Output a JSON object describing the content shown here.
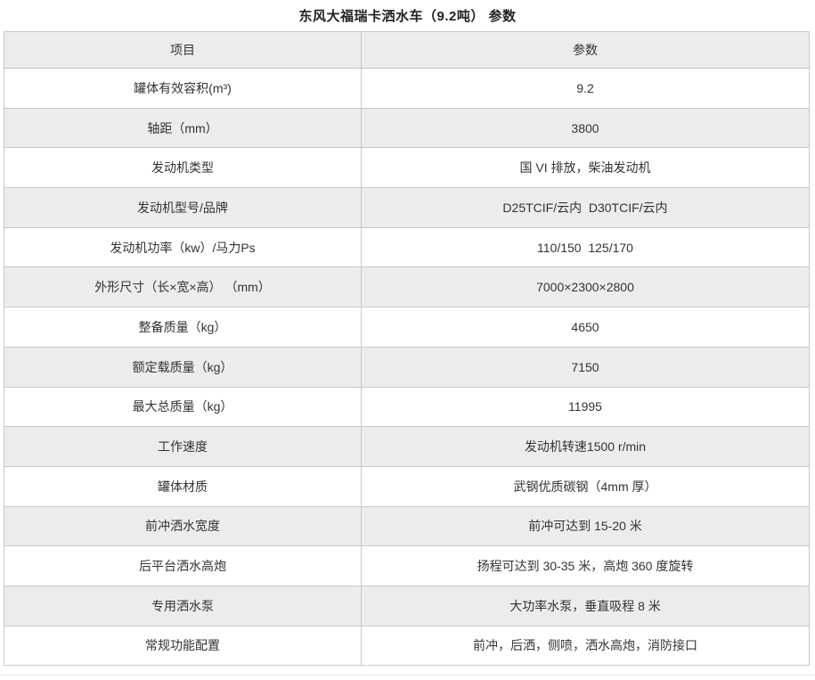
{
  "title": "东风大福瑞卡洒水车（9.2吨） 参数",
  "table": {
    "headers": [
      "项目",
      "参数"
    ],
    "rows": [
      {
        "item": "罐体有效容积(m³)",
        "value": "9.2"
      },
      {
        "item": "轴距（mm）",
        "value": "3800"
      },
      {
        "item": "发动机类型",
        "value": "国 VI 排放，柴油发动机"
      },
      {
        "item": "发动机型号/品牌",
        "value": "D25TCIF/云内  D30TCIF/云内"
      },
      {
        "item": "发动机功率（kw）/马力Ps",
        "value": "110/150  125/170"
      },
      {
        "item": "外形尺寸（长×宽×高） （mm）",
        "value": "7000×2300×2800"
      },
      {
        "item": "整备质量（kg）",
        "value": "4650"
      },
      {
        "item": "额定载质量（kg）",
        "value": "7150"
      },
      {
        "item": "最大总质量（kg）",
        "value": "11995"
      },
      {
        "item": "工作速度",
        "value": "发动机转速1500 r/min"
      },
      {
        "item": "罐体材质",
        "value": "武钢优质碳钢（4mm 厚）"
      },
      {
        "item": "前冲洒水宽度",
        "value": "前冲可达到 15-20 米"
      },
      {
        "item": "后平台洒水高炮",
        "value": "扬程可达到 30-35 米，高炮 360 度旋转"
      },
      {
        "item": "专用洒水泵",
        "value": "大功率水泵，垂直吸程 8 米"
      },
      {
        "item": "常规功能配置",
        "value": "前冲，后洒，侧喷，洒水高炮，消防接口"
      }
    ]
  },
  "colors": {
    "stripe_bg": "#ececec",
    "border": "#c9c9c9",
    "text": "#333333",
    "title_text": "#222222",
    "page_bg": "#ffffff"
  }
}
